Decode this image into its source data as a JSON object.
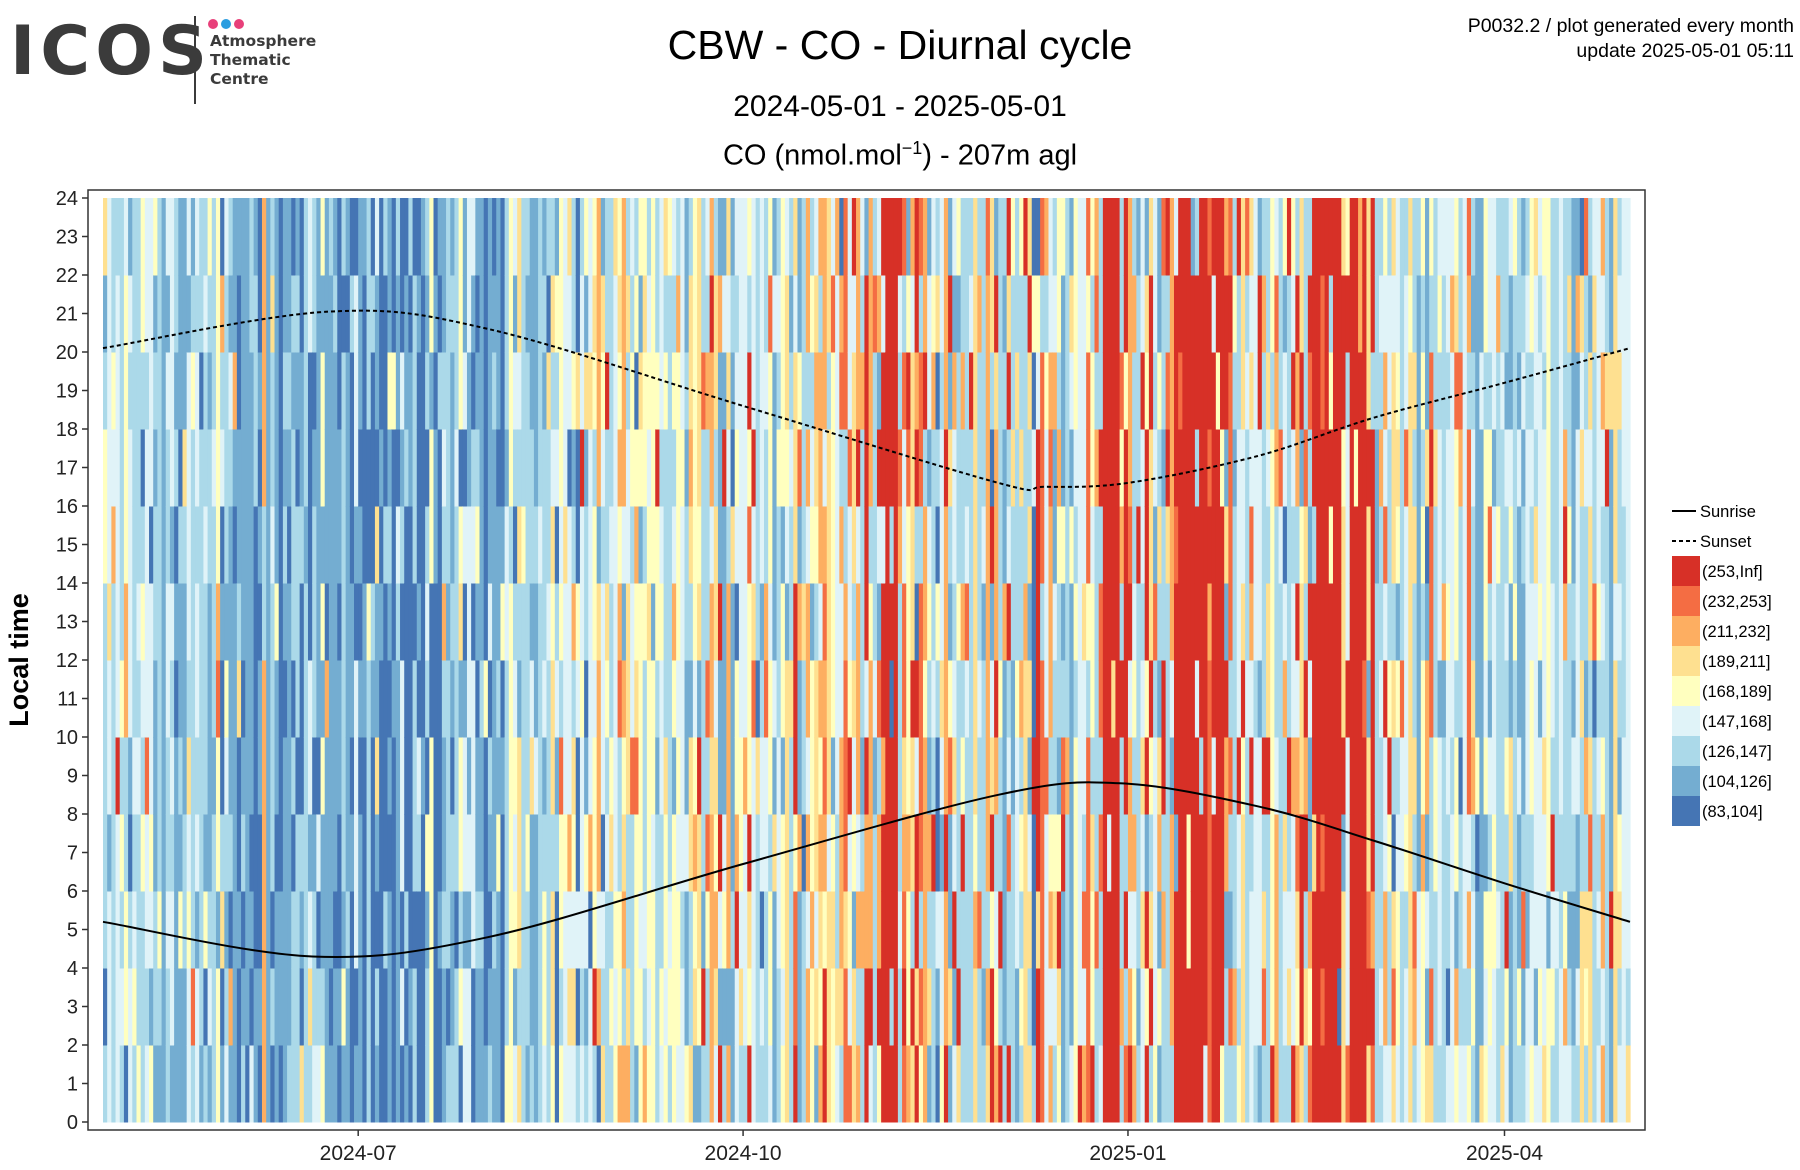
{
  "logo": {
    "wordmark": "ICOS",
    "subtitle_lines": [
      "Atmosphere",
      "Thematic",
      "Centre"
    ],
    "dot_colors": [
      "#e8407a",
      "#2a9de0",
      "#e8407a"
    ]
  },
  "meta": {
    "line1": "P0032.2 / plot generated every month",
    "line2": "update  2025-05-01 05:11"
  },
  "chart_data": {
    "type": "heatmap",
    "title": "CBW - CO - Diurnal cycle",
    "subtitle": "2024-05-01 - 2025-05-01",
    "variable_label": "CO (nmol.mol",
    "variable_sup": "−1",
    "variable_suffix": ") - 207m agl",
    "ylabel": "Local time",
    "xlabel": "",
    "x_range": [
      "2024-05-01",
      "2025-05-01"
    ],
    "y_range": [
      0,
      24
    ],
    "x_ticks": [
      "2024-07",
      "2024-10",
      "2025-01",
      "2025-04"
    ],
    "x_tick_dates": [
      "2024-07-01",
      "2024-10-01",
      "2025-01-01",
      "2025-04-01"
    ],
    "y_ticks": [
      0,
      1,
      2,
      3,
      4,
      5,
      6,
      7,
      8,
      9,
      10,
      11,
      12,
      13,
      14,
      15,
      16,
      17,
      18,
      19,
      20,
      21,
      22,
      23,
      24
    ],
    "grid": true,
    "legend_position": "right",
    "bins": [
      {
        "label": "(253,Inf]",
        "color": "#d73027"
      },
      {
        "label": "(232,253]",
        "color": "#f46d43"
      },
      {
        "label": "(211,232]",
        "color": "#fdae61"
      },
      {
        "label": "(189,211]",
        "color": "#fee090"
      },
      {
        "label": "(168,189]",
        "color": "#ffffbf"
      },
      {
        "label": "(147,168]",
        "color": "#e0f3f8"
      },
      {
        "label": "(126,147]",
        "color": "#abd9e9"
      },
      {
        "label": "(104,126]",
        "color": "#74add1"
      },
      {
        "label": "(83,104]",
        "color": "#4575b4"
      }
    ],
    "lines": [
      {
        "name": "Sunrise",
        "style": "solid",
        "points": [
          [
            "2024-05-01",
            5.2
          ],
          [
            "2024-06-20",
            4.3
          ],
          [
            "2024-08-01",
            4.8
          ],
          [
            "2024-10-01",
            6.7
          ],
          [
            "2024-12-01",
            8.5
          ],
          [
            "2024-12-30",
            8.8
          ],
          [
            "2025-02-01",
            8.2
          ],
          [
            "2025-03-01",
            7.3
          ],
          [
            "2025-04-01",
            6.2
          ],
          [
            "2025-05-01",
            5.2
          ]
        ]
      },
      {
        "name": "Sunset",
        "style": "dashed",
        "points": [
          [
            "2024-05-01",
            20.1
          ],
          [
            "2024-06-24",
            21.05
          ],
          [
            "2024-08-01",
            20.6
          ],
          [
            "2024-10-01",
            18.6
          ],
          [
            "2024-12-01",
            16.6
          ],
          [
            "2024-12-12",
            16.5
          ],
          [
            "2025-01-01",
            16.6
          ],
          [
            "2025-02-01",
            17.3
          ],
          [
            "2025-03-01",
            18.3
          ],
          [
            "2025-04-01",
            19.2
          ],
          [
            "2025-05-01",
            20.1
          ]
        ]
      }
    ],
    "periods": [
      {
        "start": "2024-05-01",
        "end": "2024-05-15",
        "bin_weights": [
          0.02,
          0.02,
          0.06,
          0.08,
          0.15,
          0.22,
          0.3,
          0.12,
          0.03
        ]
      },
      {
        "start": "2024-05-15",
        "end": "2024-06-01",
        "bin_weights": [
          0.01,
          0.01,
          0.02,
          0.04,
          0.06,
          0.15,
          0.4,
          0.25,
          0.06
        ]
      },
      {
        "start": "2024-06-01",
        "end": "2024-06-15",
        "bin_weights": [
          0.0,
          0.0,
          0.01,
          0.01,
          0.02,
          0.06,
          0.3,
          0.4,
          0.2
        ]
      },
      {
        "start": "2024-06-15",
        "end": "2024-07-01",
        "bin_weights": [
          0.0,
          0.0,
          0.01,
          0.01,
          0.02,
          0.05,
          0.25,
          0.35,
          0.31
        ]
      },
      {
        "start": "2024-07-01",
        "end": "2024-07-20",
        "bin_weights": [
          0.0,
          0.0,
          0.0,
          0.01,
          0.02,
          0.04,
          0.18,
          0.35,
          0.4
        ]
      },
      {
        "start": "2024-07-20",
        "end": "2024-08-05",
        "bin_weights": [
          0.0,
          0.0,
          0.01,
          0.01,
          0.03,
          0.08,
          0.3,
          0.32,
          0.25
        ]
      },
      {
        "start": "2024-08-05",
        "end": "2024-08-25",
        "bin_weights": [
          0.01,
          0.01,
          0.03,
          0.06,
          0.12,
          0.3,
          0.3,
          0.12,
          0.05
        ]
      },
      {
        "start": "2024-08-25",
        "end": "2024-09-20",
        "bin_weights": [
          0.02,
          0.03,
          0.06,
          0.1,
          0.25,
          0.25,
          0.2,
          0.07,
          0.02
        ]
      },
      {
        "start": "2024-09-20",
        "end": "2024-10-20",
        "bin_weights": [
          0.05,
          0.05,
          0.1,
          0.12,
          0.15,
          0.2,
          0.22,
          0.08,
          0.03
        ]
      },
      {
        "start": "2024-10-20",
        "end": "2024-11-15",
        "bin_weights": [
          0.15,
          0.08,
          0.12,
          0.1,
          0.1,
          0.15,
          0.2,
          0.08,
          0.02
        ]
      },
      {
        "start": "2024-11-15",
        "end": "2024-12-20",
        "bin_weights": [
          0.06,
          0.05,
          0.08,
          0.1,
          0.12,
          0.2,
          0.27,
          0.1,
          0.02
        ]
      },
      {
        "start": "2024-12-20",
        "end": "2025-01-10",
        "bin_weights": [
          0.15,
          0.07,
          0.1,
          0.1,
          0.1,
          0.15,
          0.23,
          0.08,
          0.02
        ]
      },
      {
        "start": "2025-01-10",
        "end": "2025-01-25",
        "bin_weights": [
          0.3,
          0.08,
          0.1,
          0.08,
          0.08,
          0.1,
          0.18,
          0.06,
          0.02
        ]
      },
      {
        "start": "2025-01-25",
        "end": "2025-02-10",
        "bin_weights": [
          0.1,
          0.06,
          0.1,
          0.1,
          0.12,
          0.15,
          0.25,
          0.1,
          0.02
        ]
      },
      {
        "start": "2025-02-10",
        "end": "2025-03-01",
        "bin_weights": [
          0.3,
          0.1,
          0.12,
          0.1,
          0.08,
          0.1,
          0.14,
          0.05,
          0.01
        ]
      },
      {
        "start": "2025-03-01",
        "end": "2025-03-25",
        "bin_weights": [
          0.06,
          0.05,
          0.1,
          0.12,
          0.12,
          0.18,
          0.27,
          0.08,
          0.02
        ]
      },
      {
        "start": "2025-03-25",
        "end": "2025-05-01",
        "bin_weights": [
          0.02,
          0.02,
          0.04,
          0.06,
          0.1,
          0.25,
          0.35,
          0.13,
          0.03
        ]
      }
    ],
    "highlight_days": [
      {
        "start": "2024-11-03",
        "end": "2024-11-07",
        "bin": 0
      },
      {
        "start": "2024-12-26",
        "end": "2024-12-30",
        "bin": 0
      },
      {
        "start": "2025-01-13",
        "end": "2025-01-20",
        "bin": 0
      },
      {
        "start": "2025-02-14",
        "end": "2025-02-21",
        "bin": 0
      },
      {
        "start": "2025-01-21",
        "end": "2025-01-24",
        "bin": 0
      },
      {
        "start": "2025-02-23",
        "end": "2025-02-26",
        "bin": 0
      }
    ]
  }
}
